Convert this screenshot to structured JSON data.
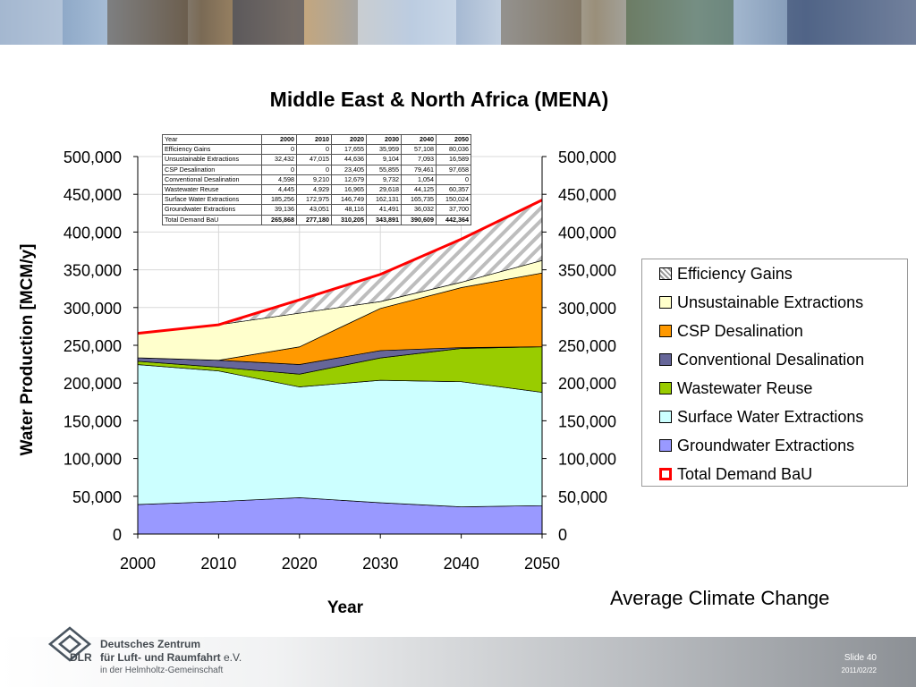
{
  "footer": {
    "org_line1": "Deutsches Zentrum",
    "org_line2": "für Luft- und Raumfahrt",
    "org_suffix": "e.V.",
    "org_line3": "in der Helmholtz-Gemeinschaft",
    "logo_text": "DLR",
    "slide_label": "Slide 40",
    "date": "2011/02/22"
  },
  "scenario_label": "Average Climate Change",
  "table": {
    "header": [
      "Year",
      "2000",
      "2010",
      "2020",
      "2030",
      "2040",
      "2050"
    ],
    "rows": [
      [
        "Efficiency Gains",
        "0",
        "0",
        "17,655",
        "35,959",
        "57,108",
        "80,036"
      ],
      [
        "Unsustainable Extractions",
        "32,432",
        "47,015",
        "44,636",
        "9,104",
        "7,093",
        "16,589"
      ],
      [
        "CSP Desalination",
        "0",
        "0",
        "23,405",
        "55,855",
        "79,461",
        "97,658"
      ],
      [
        "Conventional Desalination",
        "4,598",
        "9,210",
        "12,679",
        "9,732",
        "1,054",
        "0"
      ],
      [
        "Wastewater Reuse",
        "4,445",
        "4,929",
        "16,965",
        "29,618",
        "44,125",
        "60,357"
      ],
      [
        "Surface Water Extractions",
        "185,256",
        "172,975",
        "146,749",
        "162,131",
        "165,735",
        "150,024"
      ],
      [
        "Groundwater Extractions",
        "39,136",
        "43,051",
        "48,116",
        "41,491",
        "36,032",
        "37,700"
      ],
      [
        "Total Demand BaU",
        "265,868",
        "277,180",
        "310,205",
        "343,891",
        "390,609",
        "442,364"
      ]
    ]
  },
  "legend": [
    {
      "name": "Efficiency Gains",
      "color": "#e8e8e8",
      "pattern": "hatch"
    },
    {
      "name": "Unsustainable Extractions",
      "color": "#ffffcc"
    },
    {
      "name": "CSP Desalination",
      "color": "#ff9900"
    },
    {
      "name": "Conventional Desalination",
      "color": "#666699"
    },
    {
      "name": "Wastewater Reuse",
      "color": "#99cc00"
    },
    {
      "name": "Surface Water Extractions",
      "color": "#ccffff"
    },
    {
      "name": "Groundwater Extractions",
      "color": "#9999ff"
    },
    {
      "name": "Total Demand BaU",
      "color": "#ff0000",
      "style": "line"
    }
  ],
  "chart_data": {
    "type": "area",
    "stacked": true,
    "title": "Middle East & North Africa (MENA)",
    "xlabel": "Year",
    "ylabel": "Water Production [MCM/y]",
    "xlim": [
      2000,
      2050
    ],
    "ylim": [
      0,
      500000
    ],
    "x_ticks": [
      "2000",
      "2010",
      "2020",
      "2030",
      "2040",
      "2050"
    ],
    "y_ticks": [
      "0",
      "50,000",
      "100,000",
      "150,000",
      "200,000",
      "250,000",
      "300,000",
      "350,000",
      "400,000",
      "450,000",
      "500,000"
    ],
    "grid": true,
    "secondary_y_axis": true,
    "legend_position": "right",
    "x": [
      2000,
      2010,
      2020,
      2030,
      2040,
      2050
    ],
    "series": [
      {
        "name": "Groundwater Extractions",
        "color": "#9999ff",
        "values": [
          39136,
          43051,
          48116,
          41491,
          36032,
          37700
        ]
      },
      {
        "name": "Surface Water Extractions",
        "color": "#ccffff",
        "values": [
          185256,
          172975,
          146749,
          162131,
          165735,
          150024
        ]
      },
      {
        "name": "Wastewater Reuse",
        "color": "#99cc00",
        "values": [
          4445,
          4929,
          16965,
          29618,
          44125,
          60357
        ]
      },
      {
        "name": "Conventional Desalination",
        "color": "#666699",
        "values": [
          4598,
          9210,
          12679,
          9732,
          1054,
          0
        ]
      },
      {
        "name": "CSP Desalination",
        "color": "#ff9900",
        "values": [
          0,
          0,
          23405,
          55855,
          79461,
          97658
        ]
      },
      {
        "name": "Unsustainable Extractions",
        "color": "#ffffcc",
        "values": [
          32432,
          47015,
          44636,
          9104,
          7093,
          16589
        ]
      },
      {
        "name": "Efficiency Gains",
        "color": "#e8e8e8",
        "pattern": "hatch",
        "values": [
          0,
          0,
          17655,
          35959,
          57108,
          80036
        ]
      }
    ],
    "total_line": {
      "name": "Total Demand BaU",
      "color": "#ff0000",
      "values": [
        265868,
        277180,
        310205,
        343891,
        390609,
        442364
      ]
    }
  }
}
